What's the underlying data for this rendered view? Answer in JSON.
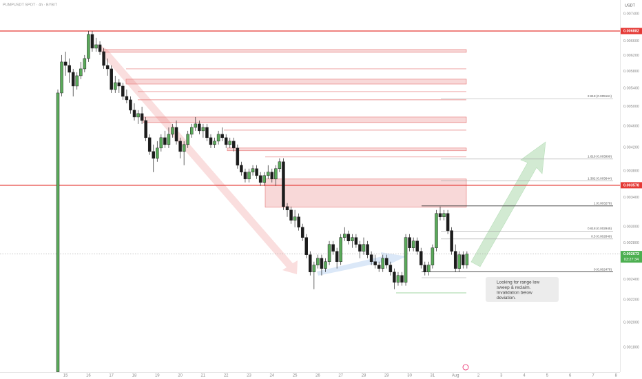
{
  "chart_data": {
    "type": "candlestick",
    "title": "PUMPUSDT SPOT · 4h · BYBIT",
    "currency": "USDT",
    "log_scale": true,
    "ylim": [
      0.00162,
      0.00785
    ],
    "yticks": [
      {
        "value": 0.0074,
        "label": "0.007400"
      },
      {
        "value": 0.0066,
        "label": "0.006600"
      },
      {
        "value": 0.0062,
        "label": "0.006200"
      },
      {
        "value": 0.0058,
        "label": "0.005800"
      },
      {
        "value": 0.0054,
        "label": "0.005400"
      },
      {
        "value": 0.005,
        "label": "0.005000"
      },
      {
        "value": 0.0046,
        "label": "0.004600"
      },
      {
        "value": 0.0042,
        "label": "0.004200"
      },
      {
        "value": 0.0038,
        "label": "0.003800"
      },
      {
        "value": 0.0034,
        "label": "0.003400"
      },
      {
        "value": 0.003,
        "label": "0.003000"
      },
      {
        "value": 0.0028,
        "label": "0.002800"
      },
      {
        "value": 0.0026,
        "label": "0.002600"
      },
      {
        "value": 0.0024,
        "label": "0.002400"
      },
      {
        "value": 0.0022,
        "label": "0.002200"
      },
      {
        "value": 0.002,
        "label": "0.002000"
      },
      {
        "value": 0.0018,
        "label": "0.001800"
      }
    ],
    "up_color": "#5aaa5a",
    "down_color": "#1c1c1c",
    "level_color": "#e53935",
    "zone_color": "#e57373",
    "price_color": "#4caf50",
    "categories": [
      null,
      null,
      "15",
      null,
      null,
      null,
      null,
      null,
      "16",
      null,
      null,
      null,
      null,
      null,
      "17",
      null,
      null,
      null,
      null,
      null,
      "18",
      null,
      null,
      null,
      null,
      null,
      "19",
      null,
      null,
      null,
      null,
      null,
      "20",
      null,
      null,
      null,
      null,
      null,
      "21",
      null,
      null,
      null,
      null,
      null,
      "22",
      null,
      null,
      null,
      null,
      null,
      "23",
      null,
      null,
      null,
      null,
      null,
      "24",
      null,
      null,
      null,
      null,
      null,
      "25",
      null,
      null,
      null,
      null,
      null,
      "26",
      null,
      null,
      null,
      null,
      null,
      "27",
      null,
      null,
      null,
      null,
      null,
      "28",
      null,
      null,
      null,
      null,
      null,
      "29",
      null,
      null,
      null,
      null,
      null,
      "30",
      null,
      null,
      null,
      null,
      null,
      "31",
      null,
      null,
      null,
      null,
      null,
      "Aug",
      null,
      null,
      null,
      null,
      null,
      "2",
      null,
      null,
      null,
      null,
      null,
      "3",
      null,
      null,
      null,
      null,
      null,
      "4",
      null,
      null,
      null,
      null,
      null,
      "5",
      null,
      null,
      null,
      null,
      null,
      "6",
      null,
      null,
      null,
      null,
      null,
      "7",
      null,
      null,
      null,
      null,
      null,
      "8"
    ],
    "open": [
      0.001622,
      0.005292,
      0.006036,
      0.005948,
      0.005777,
      0.005449,
      0.005693,
      0.005862,
      0.006125,
      0.006784,
      0.006399,
      0.006493,
      0.006306,
      0.005948,
      0.005862,
      0.00537,
      0.005529,
      0.005449,
      0.005216,
      0.00514,
      0.00492,
      0.004778,
      0.004849,
      0.004709,
      0.004378,
      0.004129,
      0.004011,
      0.00419,
      0.004378,
      0.004252,
      0.004442,
      0.004574,
      0.004314,
      0.004129,
      0.004252,
      0.004442,
      0.004574,
      0.004641,
      0.004507,
      0.004574,
      0.004378,
      0.004252,
      0.004314,
      0.004442,
      0.004378,
      0.004252,
      0.004314,
      0.00419,
      0.003895,
      0.003783,
      0.003674,
      0.003783,
      0.003839,
      0.003728,
      0.003621,
      0.003728,
      0.003783,
      0.003674,
      0.003839,
      0.003953,
      0.003269,
      0.003222,
      0.003084,
      0.003129,
      0.002995,
      0.002867,
      0.002665,
      0.002477,
      0.002551,
      0.002626,
      0.002514,
      0.002588,
      0.002784,
      0.002704,
      0.002588,
      0.002867,
      0.002909,
      0.002825,
      0.002867,
      0.002784,
      0.002704,
      0.002784,
      0.002665,
      0.002588,
      0.002551,
      0.002514,
      0.002626,
      0.002551,
      0.002477,
      0.002371,
      0.002441,
      0.002371,
      0.002867,
      0.002744,
      0.002825,
      0.002704,
      0.002551,
      0.002477,
      0.002551,
      0.002744,
      0.003175,
      0.003129,
      0.003175,
      0.002952,
      0.002704,
      0.002514,
      0.002665,
      0.002551,
      null,
      null,
      null,
      null,
      null,
      null,
      null,
      null,
      null,
      null,
      null,
      null,
      null,
      null,
      null,
      null,
      null,
      null,
      null,
      null,
      null,
      null,
      null,
      null,
      null,
      null,
      null,
      null,
      null,
      null,
      null,
      null,
      null,
      null,
      null,
      null,
      null,
      null,
      null
    ],
    "high": [
      0.00537,
      0.006215,
      0.006306,
      0.006125,
      0.005862,
      0.005777,
      0.006036,
      0.006215,
      0.006884,
      0.006884,
      0.006686,
      0.006589,
      0.006399,
      0.006125,
      0.005948,
      0.005693,
      0.005611,
      0.005529,
      0.00537,
      0.005216,
      0.005066,
      0.00492,
      0.004992,
      0.004778,
      0.004442,
      0.004252,
      0.004314,
      0.004442,
      0.004507,
      0.004574,
      0.004641,
      0.004709,
      0.004378,
      0.004314,
      0.004507,
      0.004641,
      0.004778,
      0.004709,
      0.004641,
      0.004641,
      0.004442,
      0.004378,
      0.004507,
      0.004574,
      0.004442,
      0.004378,
      0.004378,
      0.004252,
      0.003953,
      0.003839,
      0.003839,
      0.003895,
      0.003895,
      0.003783,
      0.003783,
      0.003895,
      0.003839,
      0.003895,
      0.004011,
      0.004011,
      0.003317,
      0.003269,
      0.003222,
      0.003175,
      0.003039,
      0.002909,
      0.002704,
      0.002588,
      0.002665,
      0.002665,
      0.002626,
      0.002825,
      0.002825,
      0.002744,
      0.002909,
      0.002995,
      0.002952,
      0.002909,
      0.002909,
      0.002825,
      0.002867,
      0.002825,
      0.002704,
      0.002665,
      0.002588,
      0.002665,
      0.002665,
      0.002588,
      0.002514,
      0.002477,
      0.002477,
      0.002909,
      0.002909,
      0.002867,
      0.002867,
      0.002744,
      0.002588,
      0.002588,
      0.002784,
      0.003222,
      0.003269,
      0.003222,
      0.003222,
      0.002995,
      0.002784,
      0.002704,
      0.002704,
      0.002704,
      null,
      null,
      null,
      null,
      null,
      null,
      null,
      null,
      null,
      null,
      null,
      null,
      null,
      null,
      null,
      null,
      null,
      null,
      null,
      null,
      null,
      null,
      null,
      null,
      null,
      null,
      null,
      null,
      null,
      null,
      null,
      null,
      null,
      null,
      null,
      null,
      null,
      null,
      null
    ],
    "low": [
      0.001622,
      0.005216,
      0.005693,
      0.005529,
      0.005216,
      0.00537,
      0.005611,
      0.005777,
      0.006036,
      0.006306,
      0.006306,
      0.006215,
      0.005862,
      0.005693,
      0.005292,
      0.005292,
      0.005292,
      0.00514,
      0.005066,
      0.004849,
      0.004709,
      0.004641,
      0.004641,
      0.004314,
      0.00407,
      0.003783,
      0.003953,
      0.004129,
      0.00419,
      0.00419,
      0.004378,
      0.004252,
      0.004011,
      0.003895,
      0.00419,
      0.004378,
      0.004507,
      0.004442,
      0.004378,
      0.004314,
      0.00419,
      0.00419,
      0.004252,
      0.004314,
      0.00419,
      0.00419,
      0.004129,
      0.003839,
      0.003728,
      0.003621,
      0.003621,
      0.003728,
      0.003674,
      0.003569,
      0.003569,
      0.003674,
      0.003621,
      0.003569,
      0.003783,
      0.003222,
      0.003129,
      0.003039,
      0.002995,
      0.002952,
      0.002825,
      0.002626,
      0.002441,
      0.002303,
      0.002514,
      0.002441,
      0.002477,
      0.002551,
      0.002665,
      0.002514,
      0.002551,
      0.002825,
      0.002784,
      0.002744,
      0.002744,
      0.002626,
      0.002665,
      0.002626,
      0.002551,
      0.002514,
      0.002477,
      0.002477,
      0.002514,
      0.002441,
      0.002303,
      0.002337,
      0.002337,
      0.002337,
      0.002704,
      0.002704,
      0.002665,
      0.002514,
      0.002441,
      0.002441,
      0.002514,
      0.002704,
      0.003084,
      0.003084,
      0.002909,
      0.002665,
      0.002477,
      0.002477,
      0.002514,
      0.002514,
      null,
      null,
      null,
      null,
      null,
      null,
      null,
      null,
      null,
      null,
      null,
      null,
      null,
      null,
      null,
      null,
      null,
      null,
      null,
      null,
      null,
      null,
      null,
      null,
      null,
      null,
      null,
      null,
      null,
      null,
      null,
      null,
      null,
      null,
      null,
      null,
      null,
      null,
      null
    ],
    "close": [
      0.005292,
      0.006036,
      0.005948,
      0.005777,
      0.005449,
      0.005693,
      0.005862,
      0.006125,
      0.006784,
      0.006399,
      0.006493,
      0.006306,
      0.005948,
      0.005862,
      0.00537,
      0.005529,
      0.005449,
      0.005216,
      0.00514,
      0.00492,
      0.004778,
      0.004849,
      0.004709,
      0.004378,
      0.004129,
      0.004011,
      0.00419,
      0.004378,
      0.004252,
      0.004442,
      0.004574,
      0.004314,
      0.004129,
      0.004252,
      0.004442,
      0.004574,
      0.004641,
      0.004507,
      0.004574,
      0.004378,
      0.004252,
      0.004314,
      0.004442,
      0.004378,
      0.004252,
      0.004314,
      0.00419,
      0.003895,
      0.003783,
      0.003674,
      0.003783,
      0.003839,
      0.003728,
      0.003621,
      0.003728,
      0.003783,
      0.003674,
      0.003839,
      0.003953,
      0.003269,
      0.003222,
      0.003084,
      0.003129,
      0.002995,
      0.002867,
      0.002665,
      0.002477,
      0.002551,
      0.002626,
      0.002514,
      0.002588,
      0.002784,
      0.002704,
      0.002588,
      0.002867,
      0.002909,
      0.002825,
      0.002867,
      0.002784,
      0.002704,
      0.002784,
      0.002665,
      0.002588,
      0.002551,
      0.002514,
      0.002626,
      0.002551,
      0.002477,
      0.002371,
      0.002441,
      0.002371,
      0.002867,
      0.002744,
      0.002825,
      0.002704,
      0.002551,
      0.002477,
      0.002551,
      0.002744,
      0.003175,
      0.003129,
      0.003175,
      0.002952,
      0.002704,
      0.002514,
      0.002665,
      0.002551,
      0.002673,
      null,
      null,
      null,
      null,
      null,
      null,
      null,
      null,
      null,
      null,
      null,
      null,
      null,
      null,
      null,
      null,
      null,
      null,
      null,
      null,
      null,
      null,
      null,
      null,
      null,
      null,
      null,
      null,
      null,
      null,
      null,
      null,
      null,
      null,
      null,
      null,
      null,
      null,
      null
    ],
    "key_levels": [
      0.006882,
      0.003578
    ],
    "last_price": 0.002673,
    "countdown": "03:27:34",
    "supply_lines": [
      0.005862,
      0.005323,
      0.00514,
      0.00452,
      0.004034
    ],
    "supply_zones": [
      [
        0.006362,
        0.006288
      ],
      [
        0.005611,
        0.005496
      ],
      [
        0.004778,
        0.004668
      ],
      [
        0.00419,
        0.004142
      ],
      [
        0.003674,
        0.00326
      ]
    ],
    "fib_levels": [
      {
        "label": "2.618 (0.005161)",
        "value": 0.005161
      },
      {
        "label": "1.618 (0.003999)",
        "value": 0.003999
      },
      {
        "label": "1.382 (0.003644)",
        "value": 0.003644
      },
      {
        "label": "1 (0.003278)",
        "value": 0.003278
      },
      {
        "label": "0.618 (0.002945)",
        "value": 0.002945
      },
      {
        "label": "0.5 (0.002849)",
        "value": 0.002849
      },
      {
        "label": "0 (0.002478)",
        "value": 0.002478
      }
    ],
    "annotation": [
      "Looking for range low",
      "sweep & reclaim.",
      "Invalidation below",
      "deviation."
    ]
  }
}
